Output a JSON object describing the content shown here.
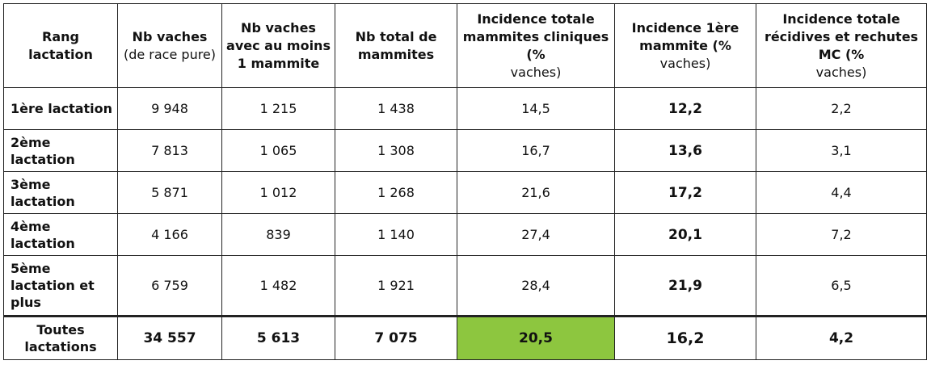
{
  "table": {
    "headers": [
      {
        "line1": "Rang",
        "line2": "lactation",
        "light": ""
      },
      {
        "line1": "Nb vaches",
        "line2": "",
        "light": "(de race pure)"
      },
      {
        "line1": "Nb vaches avec au moins 1 mammite",
        "line2": "",
        "light": ""
      },
      {
        "line1": "Nb total de mammites",
        "line2": "",
        "light": ""
      },
      {
        "line1": "Incidence totale mammites cliniques (%",
        "line2": "",
        "light": "vaches)"
      },
      {
        "line1": "Incidence 1ère mammite (%",
        "line2": "",
        "light": "vaches)"
      },
      {
        "line1": "Incidence totale récidives et rechutes MC (%",
        "line2": "",
        "light": "vaches)"
      }
    ],
    "rows": [
      {
        "rang": "1ère lactation",
        "nb_vaches": "9 948",
        "nb_mammite": "1 215",
        "total_mammites": "1 438",
        "inc_totale": "14,5",
        "inc_1ere": "12,2",
        "inc_recid": "2,2"
      },
      {
        "rang": "2ème lactation",
        "nb_vaches": "7 813",
        "nb_mammite": "1 065",
        "total_mammites": "1 308",
        "inc_totale": "16,7",
        "inc_1ere": "13,6",
        "inc_recid": "3,1"
      },
      {
        "rang": "3ème lactation",
        "nb_vaches": "5 871",
        "nb_mammite": "1 012",
        "total_mammites": "1 268",
        "inc_totale": "21,6",
        "inc_1ere": "17,2",
        "inc_recid": "4,4"
      },
      {
        "rang": "4ème lactation",
        "nb_vaches": "4 166",
        "nb_mammite": "839",
        "total_mammites": "1 140",
        "inc_totale": "27,4",
        "inc_1ere": "20,1",
        "inc_recid": "7,2"
      },
      {
        "rang": "5ème lactation et plus",
        "nb_vaches": "6 759",
        "nb_mammite": "1 482",
        "total_mammites": "1 921",
        "inc_totale": "28,4",
        "inc_1ere": "21,9",
        "inc_recid": "6,5"
      }
    ],
    "total": {
      "rang": "Toutes lactations",
      "nb_vaches": "34 557",
      "nb_mammite": "5 613",
      "total_mammites": "7 075",
      "inc_totale": "20,5",
      "inc_1ere": "16,2",
      "inc_recid": "4,2"
    },
    "highlight_color": "#8dc63f"
  }
}
